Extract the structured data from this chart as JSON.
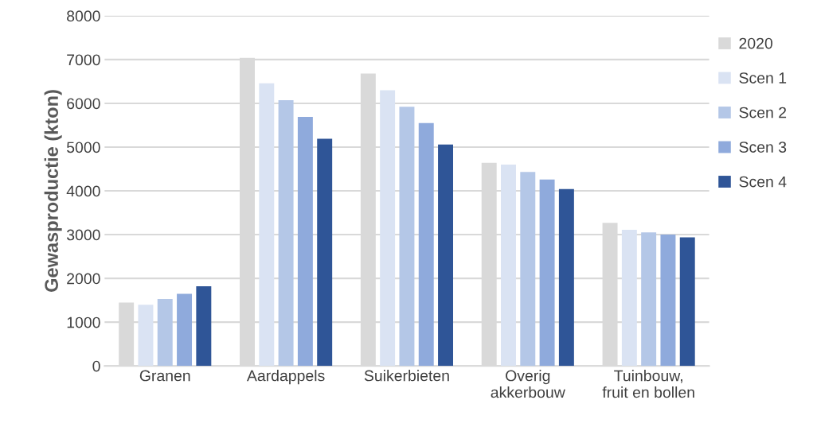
{
  "chart_data": {
    "type": "bar",
    "ylabel": "Gewasproductie (kton)",
    "categories": [
      "Granen",
      "Aardappels",
      "Suikerbieten",
      "Overig\nakkerbouw",
      "Tuinbouw,\nfruit en bollen"
    ],
    "series": [
      {
        "name": "2020",
        "color": "#d9d9d9",
        "values": [
          1450,
          7040,
          6680,
          4640,
          3270
        ]
      },
      {
        "name": "Scen 1",
        "color": "#dae3f3",
        "values": [
          1400,
          6460,
          6300,
          4600,
          3110
        ]
      },
      {
        "name": "Scen 2",
        "color": "#b4c7e7",
        "values": [
          1530,
          6070,
          5920,
          4430,
          3050
        ]
      },
      {
        "name": "Scen 3",
        "color": "#8faadc",
        "values": [
          1650,
          5690,
          5550,
          4260,
          3000
        ]
      },
      {
        "name": "Scen 4",
        "color": "#2f5597",
        "values": [
          1820,
          5190,
          5060,
          4040,
          2940
        ]
      }
    ],
    "ylim": [
      0,
      8000
    ],
    "yticks": [
      0,
      1000,
      2000,
      3000,
      4000,
      5000,
      6000,
      7000,
      8000
    ],
    "grid": "y",
    "legend": "right"
  }
}
